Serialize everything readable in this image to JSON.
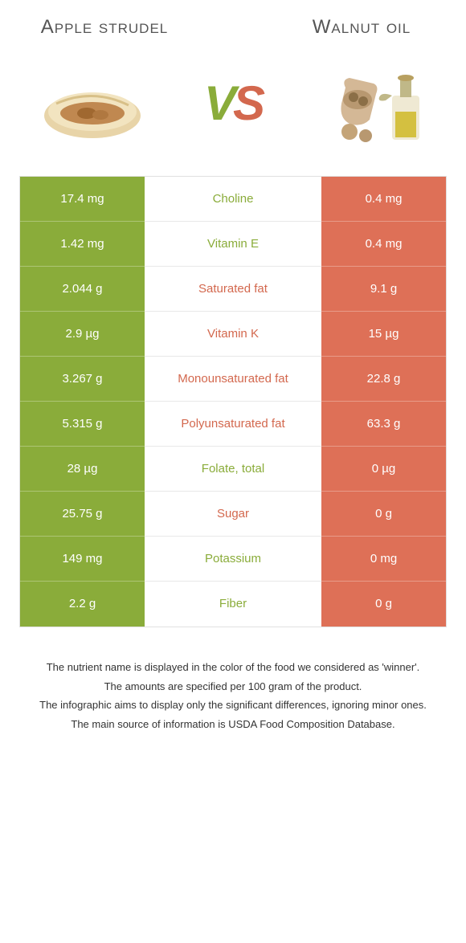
{
  "header": {
    "left_title": "Apple strudel",
    "right_title": "Walnut oil",
    "vs_v": "V",
    "vs_s": "S"
  },
  "colors": {
    "left_green": "#8aac3a",
    "right_orange": "#de7057",
    "text_green": "#8aac3a",
    "text_orange": "#d3684e",
    "border": "#e0e0e0"
  },
  "rows": [
    {
      "left": "17.4 mg",
      "nutrient": "Choline",
      "right": "0.4 mg",
      "winner": "left"
    },
    {
      "left": "1.42 mg",
      "nutrient": "Vitamin E",
      "right": "0.4 mg",
      "winner": "left"
    },
    {
      "left": "2.044 g",
      "nutrient": "Saturated fat",
      "right": "9.1 g",
      "winner": "right"
    },
    {
      "left": "2.9 µg",
      "nutrient": "Vitamin K",
      "right": "15 µg",
      "winner": "right"
    },
    {
      "left": "3.267 g",
      "nutrient": "Monounsaturated fat",
      "right": "22.8 g",
      "winner": "right"
    },
    {
      "left": "5.315 g",
      "nutrient": "Polyunsaturated fat",
      "right": "63.3 g",
      "winner": "right"
    },
    {
      "left": "28 µg",
      "nutrient": "Folate, total",
      "right": "0 µg",
      "winner": "left"
    },
    {
      "left": "25.75 g",
      "nutrient": "Sugar",
      "right": "0 g",
      "winner": "right"
    },
    {
      "left": "149 mg",
      "nutrient": "Potassium",
      "right": "0 mg",
      "winner": "left"
    },
    {
      "left": "2.2 g",
      "nutrient": "Fiber",
      "right": "0 g",
      "winner": "left"
    }
  ],
  "footer": {
    "line1": "The nutrient name is displayed in the color of the food we considered as 'winner'.",
    "line2": "The amounts are specified per 100 gram of the product.",
    "line3": "The infographic aims to display only the significant differences, ignoring minor ones.",
    "line4": "The main source of information is USDA Food Composition Database."
  }
}
